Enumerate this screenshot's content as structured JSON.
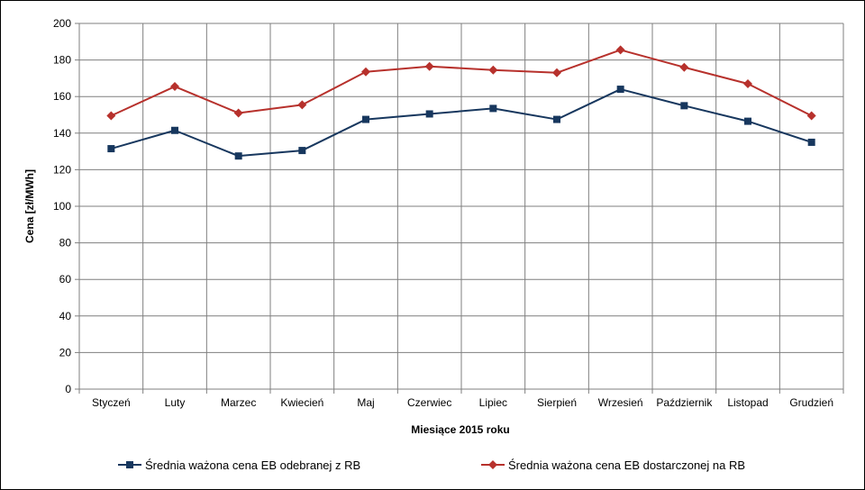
{
  "chart_data": {
    "type": "line",
    "xlabel": "Miesiące 2015  roku",
    "ylabel": "Cena [zł/MWh]",
    "ylim": [
      0,
      200
    ],
    "ytick_step": 20,
    "grid": true,
    "legend_position": "bottom",
    "categories": [
      "Styczeń",
      "Luty",
      "Marzec",
      "Kwiecień",
      "Maj",
      "Czerwiec",
      "Lipiec",
      "Sierpień",
      "Wrzesień",
      "Październik",
      "Listopad",
      "Grudzień"
    ],
    "series": [
      {
        "name": "Średnia ważona cena EB odebranej z RB",
        "color": "#17375e",
        "marker": "square",
        "values": [
          131.5,
          141.5,
          127.5,
          130.5,
          147.5,
          150.5,
          153.5,
          147.5,
          164.0,
          155.0,
          146.5,
          135.0
        ]
      },
      {
        "name": "Średnia ważona cena EB dostarczonej na RB",
        "color": "#b7312c",
        "marker": "diamond",
        "values": [
          149.5,
          165.5,
          151.0,
          155.5,
          173.5,
          176.5,
          174.5,
          173.0,
          185.5,
          176.0,
          167.0,
          149.5
        ]
      }
    ]
  }
}
